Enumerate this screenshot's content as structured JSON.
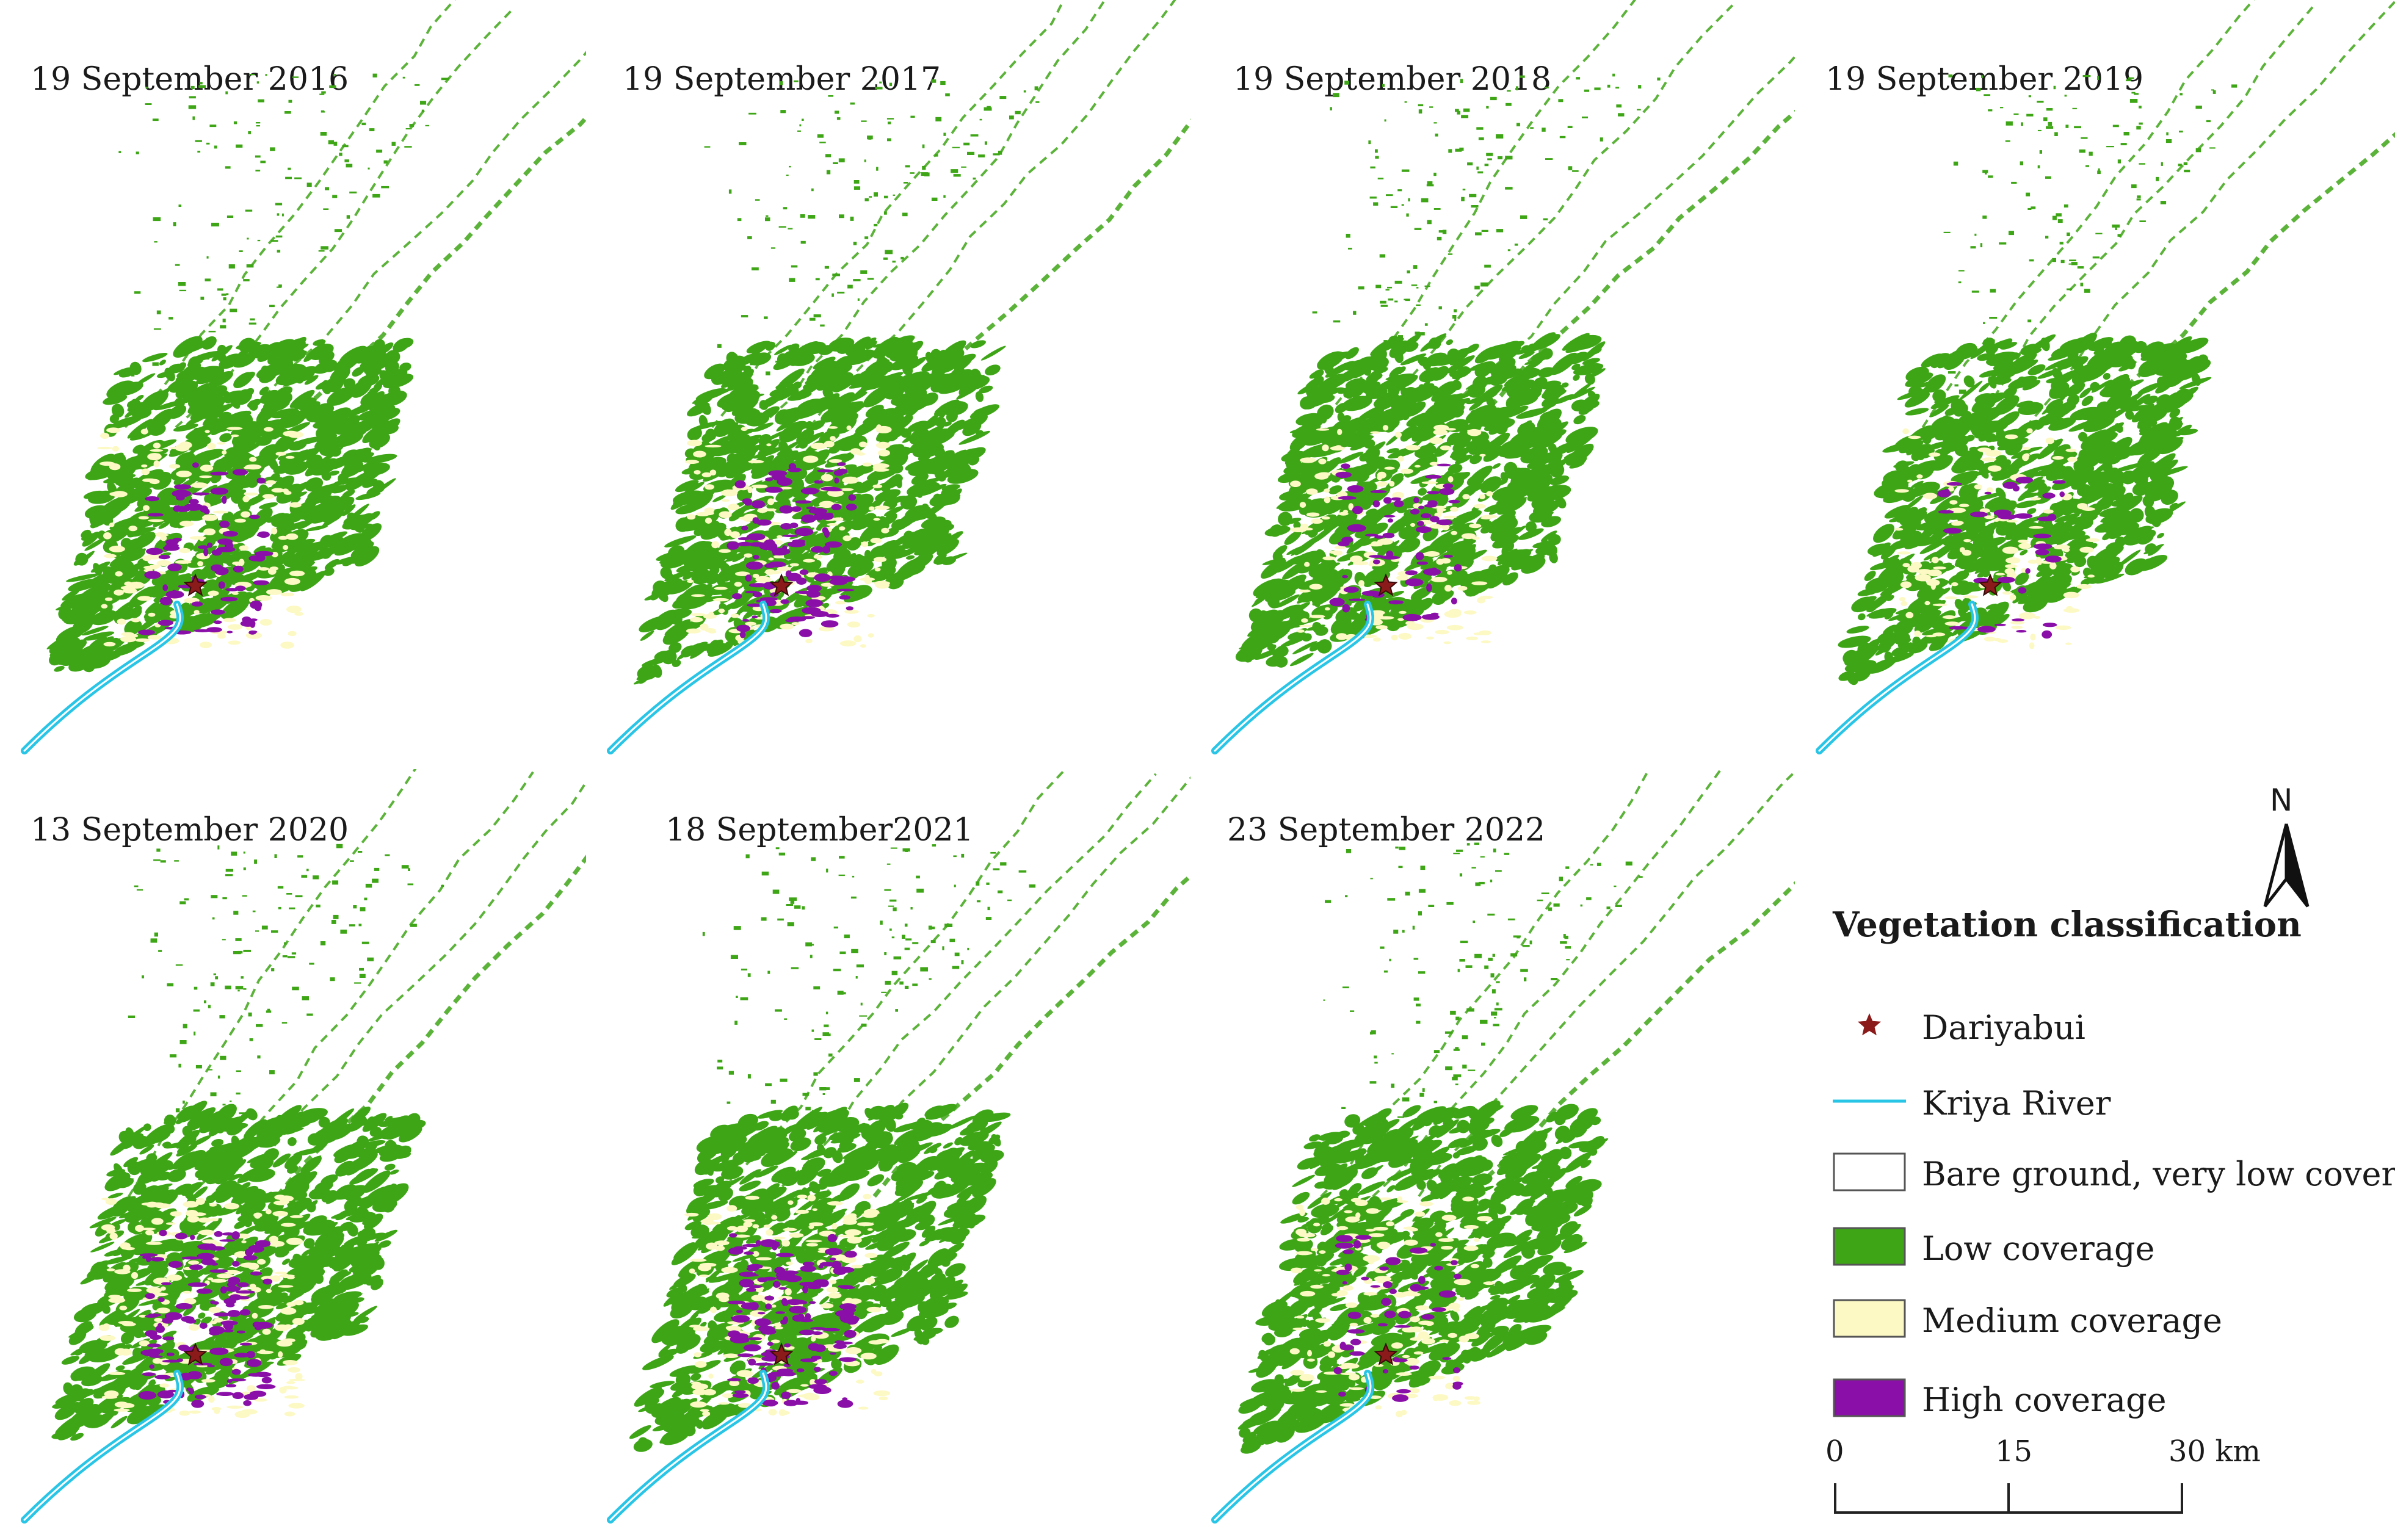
{
  "panels": [
    {
      "date": "19 September 2016",
      "high_extent": 0.55,
      "medium_extent": 0.55,
      "low_extent": 1.0
    },
    {
      "date": "19 September 2017",
      "high_extent": 0.75,
      "medium_extent": 0.6,
      "low_extent": 1.0
    },
    {
      "date": "19 September 2018",
      "high_extent": 0.45,
      "medium_extent": 0.55,
      "low_extent": 1.0
    },
    {
      "date": "19 September 2019",
      "high_extent": 0.25,
      "medium_extent": 0.45,
      "low_extent": 1.0
    },
    {
      "date": "13 September 2020",
      "high_extent": 0.85,
      "medium_extent": 0.7,
      "low_extent": 1.0
    },
    {
      "date": "18 September2021",
      "high_extent": 1.0,
      "medium_extent": 0.65,
      "low_extent": 1.0
    },
    {
      "date": "23 September 2022",
      "high_extent": 0.35,
      "medium_extent": 0.6,
      "low_extent": 1.0
    }
  ],
  "legend": {
    "title": "Vegetation classification",
    "items": [
      {
        "label": "Dariyabui",
        "symbol": "star",
        "color": "#8b1a1a"
      },
      {
        "label": "Kriya River",
        "symbol": "line",
        "color": "#29c5e6"
      },
      {
        "label": "Bare ground, very low cover",
        "symbol": "box",
        "color": "#ffffff"
      },
      {
        "label": "Low coverage",
        "symbol": "box",
        "color": "#3ea616"
      },
      {
        "label": "Medium coverage",
        "symbol": "box",
        "color": "#fdf9c4"
      },
      {
        "label": "High coverage",
        "symbol": "box",
        "color": "#8a0ea8"
      }
    ]
  },
  "north_label": "N",
  "scalebar": {
    "labels": [
      "0",
      "15",
      "30 km"
    ],
    "values_km": [
      0,
      15,
      30
    ]
  },
  "colors": {
    "low": "#3ea616",
    "medium": "#fdf9c4",
    "high": "#8a0ea8",
    "river": "#29c5e6",
    "site": "#8b1a1a"
  }
}
